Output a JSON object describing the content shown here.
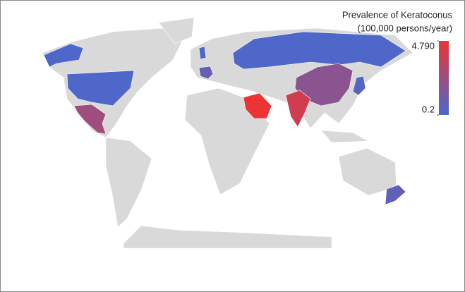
{
  "chart_data": {
    "type": "choropleth",
    "legend_title": "Prevalence of Keratoconus",
    "legend_subtitle": "(100,000 persons/year)",
    "clim": [
      0.2,
      4.79
    ],
    "cticks": [
      {
        "value": 4.79,
        "label": "4.790"
      },
      0.2
    ],
    "min_color": "#4a68cc",
    "max_color": "#ec3434",
    "land_color": "#d9d9d9",
    "values": [
      0.3,
      0.3,
      2.6,
      0.4,
      1.0,
      0.3,
      2.0,
      0.5,
      4.79,
      4.0,
      0.8
    ]
  }
}
